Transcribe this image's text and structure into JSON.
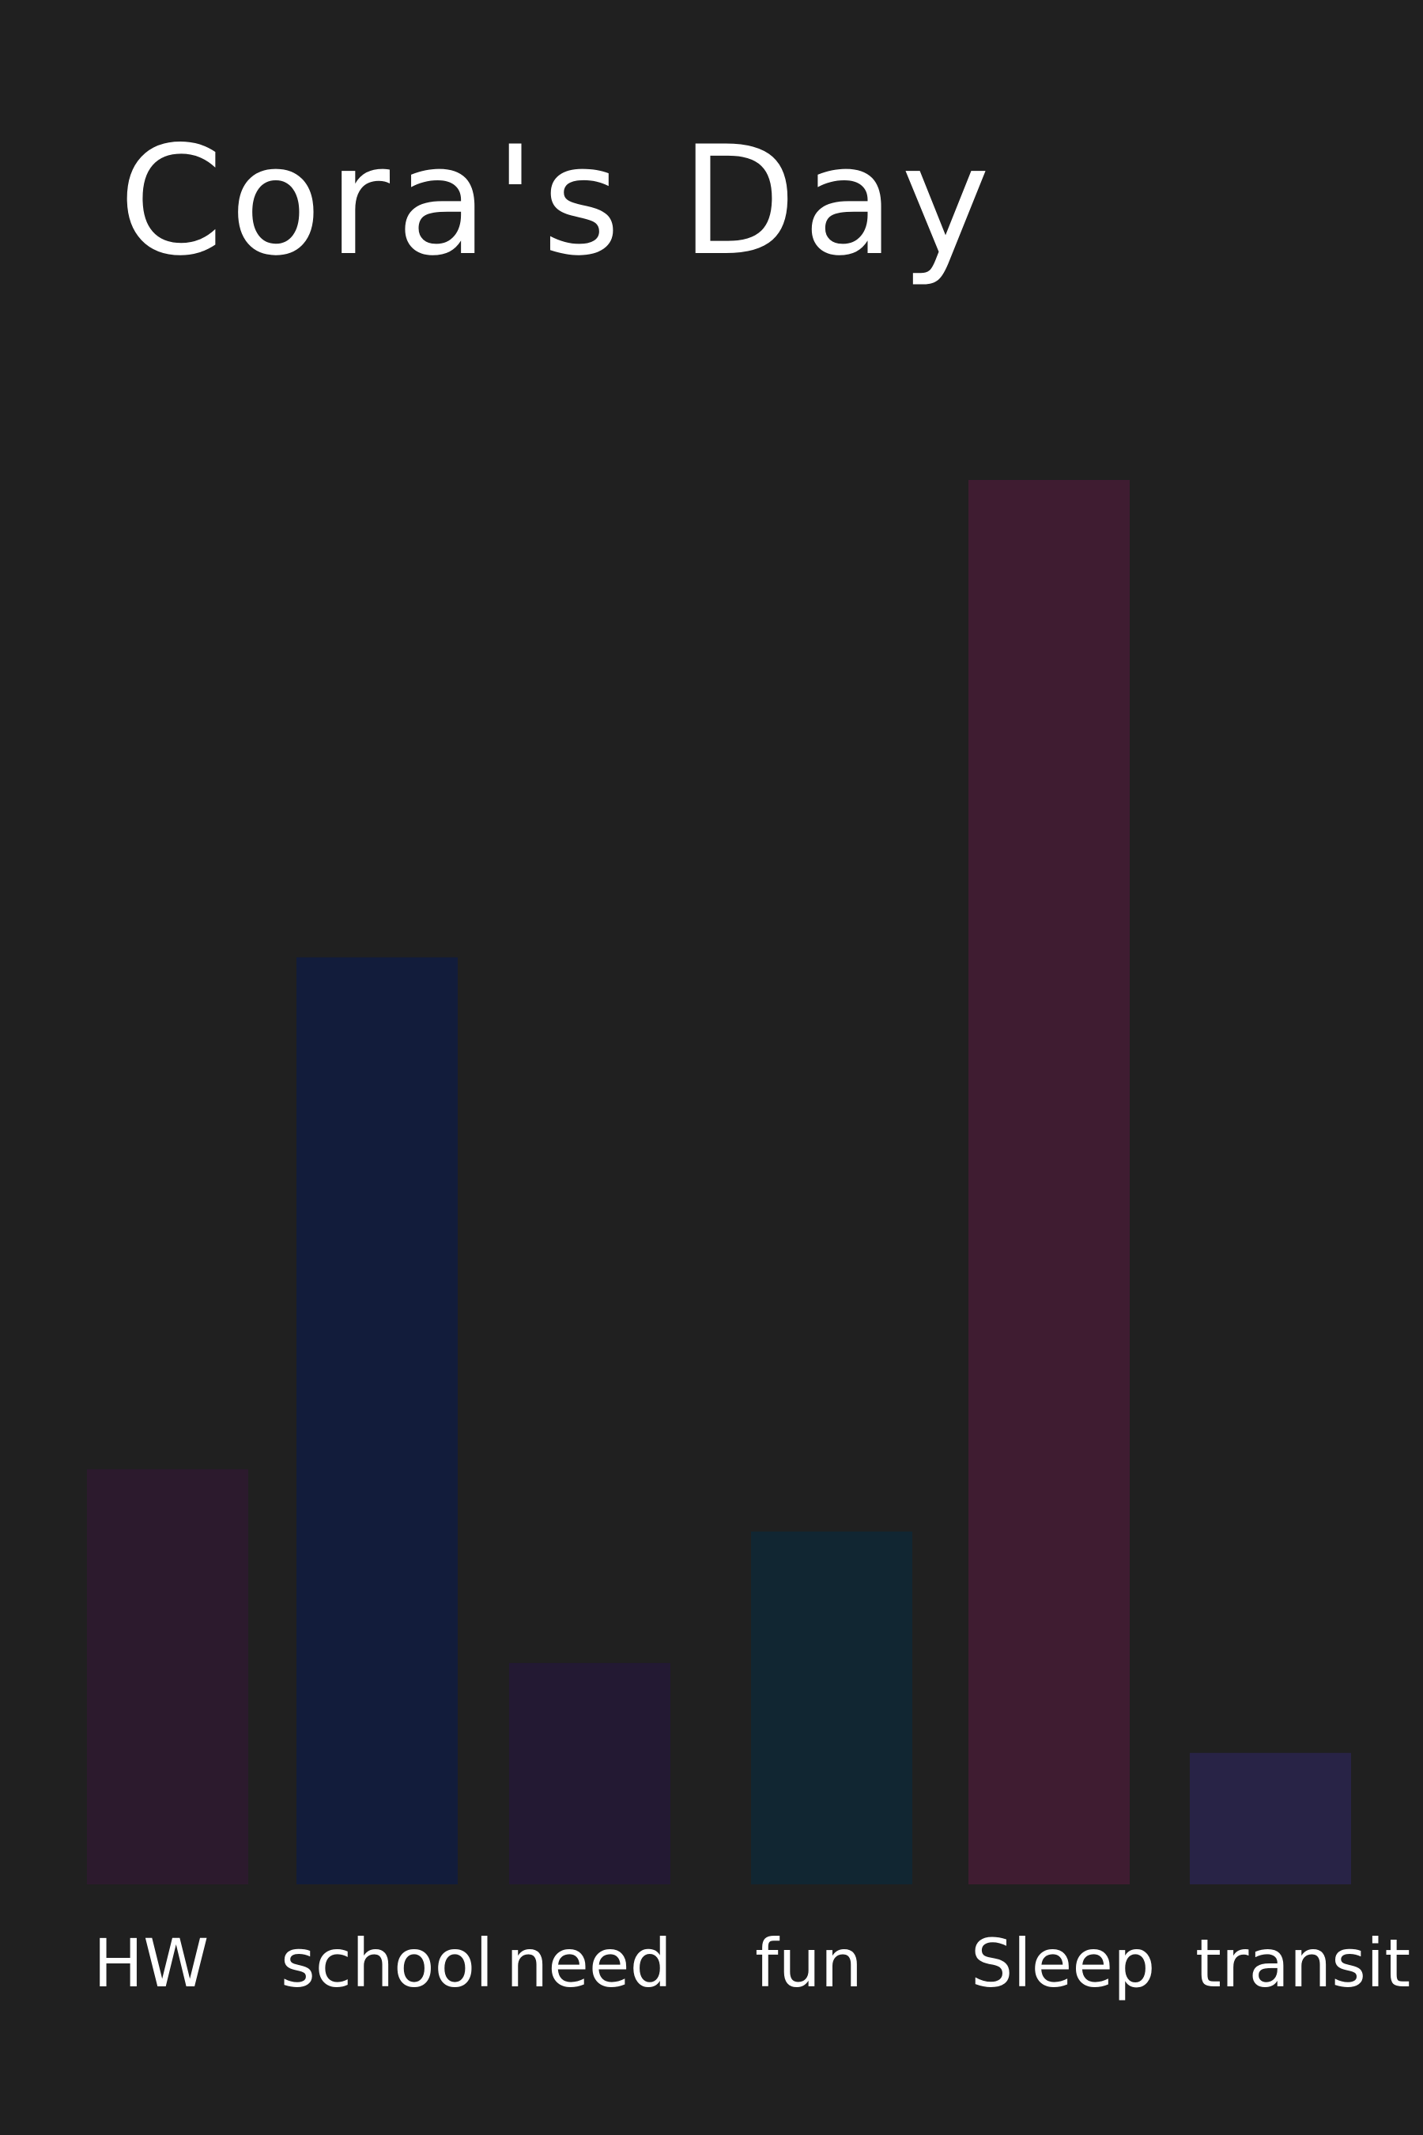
{
  "chart_data": {
    "type": "bar",
    "title": "Cora's Day",
    "xlabel": "",
    "ylabel": "",
    "categories": [
      "HW",
      "school",
      "need",
      "fun",
      "Sleep",
      "transit"
    ],
    "values": [
      3,
      6.7,
      1.6,
      2.55,
      10.15,
      0.95
    ],
    "ylim": [
      0,
      10.15
    ],
    "grid": false,
    "legend": "none",
    "colors": [
      "#2c1a2d",
      "#121c3b",
      "#231933",
      "#112632",
      "#3f1c31",
      "#282346"
    ]
  }
}
